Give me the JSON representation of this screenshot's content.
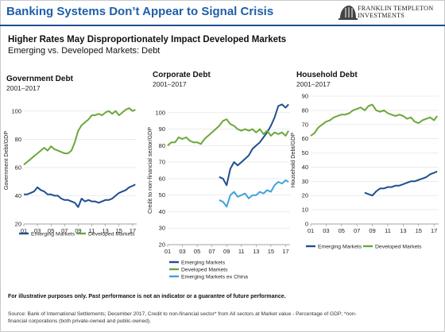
{
  "header": {
    "title": "Banking Systems Don’t Appear to Signal Crisis",
    "brand_line1": "FRANKLIN TEMPLETON",
    "brand_line2": "INVESTMENTS",
    "subtitle": "Higher Rates May Disproportionately Impact Developed Markets",
    "subtitle2": "Emerging vs. Developed Markets: Debt"
  },
  "footer": {
    "disclaimer": "For illustrative purposes only. Past performance is not an indicator or a guarantee of future performance.",
    "source_line1": "Source: Bank of International Settlements; December 2017, Credit to non-financial sector* from All sectors at Market value - Percentage of GDP; *non-",
    "source_line2": "financial corporations (both private-owned and public-owned)."
  },
  "colors": {
    "title_blue": "#1f5ea8",
    "emerging": "#1f4f8f",
    "developed": "#6aa83a",
    "emerging_ex_china": "#3ea3dc"
  },
  "chart_data": [
    {
      "type": "line",
      "title": "Government Debt",
      "subtitle": "2001–2017",
      "ylabel": "Government Debt/GDP",
      "xlabel": "",
      "xlim": [
        2001,
        2017.6
      ],
      "ylim": [
        20,
        110
      ],
      "yticks": [
        20,
        40,
        60,
        80,
        100
      ],
      "xticks": [
        "01",
        "03",
        "05",
        "07",
        "09",
        "11",
        "13",
        "15",
        "17"
      ],
      "legend": "bottom",
      "series": [
        {
          "name": "Emerging Markets",
          "color": "#1f4f8f",
          "x": [
            2001.0,
            2001.5,
            2002.0,
            2002.5,
            2003.0,
            2003.5,
            2004.0,
            2004.5,
            2005.0,
            2005.5,
            2006.0,
            2006.5,
            2007.0,
            2007.5,
            2008.0,
            2008.5,
            2009.0,
            2009.5,
            2010.0,
            2010.5,
            2011.0,
            2011.5,
            2012.0,
            2012.5,
            2013.0,
            2013.5,
            2014.0,
            2014.5,
            2015.0,
            2015.5,
            2016.0,
            2016.5,
            2017.0,
            2017.4
          ],
          "y": [
            41,
            41,
            42,
            43,
            46,
            44,
            43,
            41,
            41,
            40,
            40,
            38,
            37,
            37,
            36,
            35,
            32,
            38,
            36,
            37,
            36,
            36,
            35,
            36,
            37,
            37,
            38,
            40,
            42,
            43,
            44,
            46,
            47,
            48
          ]
        },
        {
          "name": "Developed Markets",
          "color": "#6aa83a",
          "x": [
            2001.0,
            2001.5,
            2002.0,
            2002.5,
            2003.0,
            2003.5,
            2004.0,
            2004.5,
            2005.0,
            2005.5,
            2006.0,
            2006.5,
            2007.0,
            2007.5,
            2008.0,
            2008.5,
            2009.0,
            2009.5,
            2010.0,
            2010.5,
            2011.0,
            2011.5,
            2012.0,
            2012.5,
            2013.0,
            2013.5,
            2014.0,
            2014.5,
            2015.0,
            2015.5,
            2016.0,
            2016.5,
            2017.0,
            2017.4
          ],
          "y": [
            62,
            64,
            66,
            68,
            70,
            72,
            74,
            72,
            75,
            73,
            72,
            71,
            70,
            70,
            72,
            78,
            86,
            90,
            92,
            94,
            97,
            97,
            98,
            97,
            99,
            100,
            98,
            100,
            97,
            99,
            101,
            102,
            100,
            101
          ]
        }
      ]
    },
    {
      "type": "line",
      "title": "Corporate Debt",
      "subtitle": "2001–2017",
      "ylabel": "Credit to non-financial sector/GDP",
      "xlabel": "",
      "xlim": [
        2001,
        2017.6
      ],
      "ylim": [
        20,
        110
      ],
      "yticks": [
        20,
        30,
        40,
        50,
        60,
        70,
        80,
        90,
        100
      ],
      "xticks": [
        "01",
        "03",
        "05",
        "07",
        "09",
        "11",
        "13",
        "15",
        "17"
      ],
      "legend": "bottom",
      "series": [
        {
          "name": "Emerging Markets",
          "color": "#1f4f8f",
          "x": [
            2008.0,
            2008.5,
            2009.0,
            2009.5,
            2010.0,
            2010.5,
            2011.0,
            2011.5,
            2012.0,
            2012.5,
            2013.0,
            2013.5,
            2014.0,
            2014.5,
            2015.0,
            2015.5,
            2016.0,
            2016.5,
            2017.0,
            2017.4
          ],
          "y": [
            61,
            60,
            56,
            66,
            70,
            68,
            70,
            72,
            74,
            78,
            80,
            82,
            85,
            88,
            92,
            97,
            104,
            105,
            103,
            105
          ]
        },
        {
          "name": "Developed Markets",
          "color": "#6aa83a",
          "x": [
            2001.0,
            2001.5,
            2002.0,
            2002.5,
            2003.0,
            2003.5,
            2004.0,
            2004.5,
            2005.0,
            2005.5,
            2006.0,
            2006.5,
            2007.0,
            2007.5,
            2008.0,
            2008.5,
            2009.0,
            2009.5,
            2010.0,
            2010.5,
            2011.0,
            2011.5,
            2012.0,
            2012.5,
            2013.0,
            2013.5,
            2014.0,
            2014.5,
            2015.0,
            2015.5,
            2016.0,
            2016.5,
            2017.0,
            2017.4
          ],
          "y": [
            80,
            82,
            82,
            85,
            84,
            85,
            83,
            82,
            82,
            81,
            84,
            86,
            88,
            90,
            92,
            95,
            96,
            93,
            92,
            90,
            89,
            90,
            89,
            90,
            88,
            90,
            87,
            89,
            86,
            88,
            87,
            88,
            86,
            89
          ]
        },
        {
          "name": "Emerging Markets ex China",
          "color": "#3ea3dc",
          "x": [
            2008.0,
            2008.5,
            2009.0,
            2009.5,
            2010.0,
            2010.5,
            2011.0,
            2011.5,
            2012.0,
            2012.5,
            2013.0,
            2013.5,
            2014.0,
            2014.5,
            2015.0,
            2015.5,
            2016.0,
            2016.5,
            2017.0,
            2017.4
          ],
          "y": [
            47,
            46,
            43,
            50,
            52,
            49,
            50,
            51,
            48,
            50,
            50,
            52,
            51,
            53,
            52,
            56,
            58,
            57,
            59,
            58
          ]
        }
      ]
    },
    {
      "type": "line",
      "title": "Household Debt",
      "subtitle": "2001–2017",
      "ylabel": "Household Debt/GDP",
      "xlabel": "",
      "xlim": [
        2001,
        2017.6
      ],
      "ylim": [
        0,
        90
      ],
      "yticks": [
        0,
        10,
        20,
        30,
        40,
        50,
        60,
        70,
        80,
        90
      ],
      "xticks": [
        "01",
        "03",
        "05",
        "07",
        "09",
        "11",
        "13",
        "15",
        "17"
      ],
      "legend": "bottom",
      "series": [
        {
          "name": "Emerging Markets",
          "color": "#1f4f8f",
          "x": [
            2008.0,
            2008.5,
            2009.0,
            2009.5,
            2010.0,
            2010.5,
            2011.0,
            2011.5,
            2012.0,
            2012.5,
            2013.0,
            2013.5,
            2014.0,
            2014.5,
            2015.0,
            2015.5,
            2016.0,
            2016.5,
            2017.0,
            2017.4
          ],
          "y": [
            22,
            21,
            20,
            23,
            25,
            25,
            26,
            26,
            27,
            27,
            28,
            29,
            30,
            30,
            31,
            32,
            33,
            35,
            36,
            37
          ]
        },
        {
          "name": "Developed Markets",
          "color": "#6aa83a",
          "x": [
            2001.0,
            2001.5,
            2002.0,
            2002.5,
            2003.0,
            2003.5,
            2004.0,
            2004.5,
            2005.0,
            2005.5,
            2006.0,
            2006.5,
            2007.0,
            2007.5,
            2008.0,
            2008.5,
            2009.0,
            2009.5,
            2010.0,
            2010.5,
            2011.0,
            2011.5,
            2012.0,
            2012.5,
            2013.0,
            2013.5,
            2014.0,
            2014.5,
            2015.0,
            2015.5,
            2016.0,
            2016.5,
            2017.0,
            2017.4
          ],
          "y": [
            62,
            64,
            68,
            70,
            72,
            73,
            75,
            76,
            77,
            77,
            78,
            80,
            81,
            82,
            80,
            83,
            84,
            80,
            79,
            80,
            78,
            77,
            76,
            77,
            76,
            74,
            75,
            72,
            71,
            73,
            74,
            75,
            73,
            76
          ]
        }
      ]
    }
  ]
}
